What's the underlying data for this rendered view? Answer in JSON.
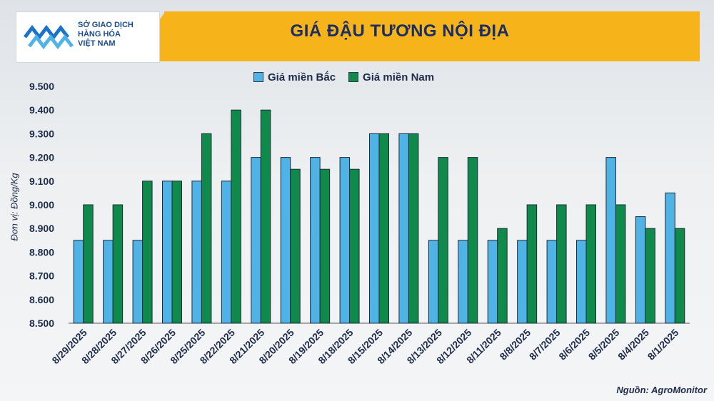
{
  "header": {
    "title": "GIÁ ĐẬU TƯƠNG NỘI ĐỊA",
    "logo_text_line1": "SỞ GIAO DỊCH",
    "logo_text_line2": "HÀNG HÓA",
    "logo_text_line3": "VIỆT NAM"
  },
  "source": "Nguồn: AgroMonitor",
  "colors": {
    "north": "#4fb3e6",
    "south": "#0f8a4a",
    "accent": "#f6b31a",
    "title": "#1a2e66"
  },
  "chart_data": {
    "type": "bar",
    "title": "GIÁ ĐẬU TƯƠNG NỘI ĐỊA",
    "ylabel": "Đơn vị: Đồng/Kg",
    "xlabel": "",
    "ylim": [
      8500,
      9500
    ],
    "yticks": [
      "8.500",
      "8.600",
      "8.700",
      "8.800",
      "8.900",
      "9.000",
      "9.100",
      "9.200",
      "9.300",
      "9.400",
      "9.500"
    ],
    "ytick_values": [
      8500,
      8600,
      8700,
      8800,
      8900,
      9000,
      9100,
      9200,
      9300,
      9400,
      9500
    ],
    "legend_position": "top",
    "categories": [
      "8/29/2025",
      "8/28/2025",
      "8/27/2025",
      "8/26/2025",
      "8/25/2025",
      "8/22/2025",
      "8/21/2025",
      "8/20/2025",
      "8/19/2025",
      "8/18/2025",
      "8/15/2025",
      "8/14/2025",
      "8/13/2025",
      "8/12/2025",
      "8/11/2025",
      "8/8/2025",
      "8/7/2025",
      "8/6/2025",
      "8/5/2025",
      "8/4/2025",
      "8/1/2025"
    ],
    "series": [
      {
        "name": "Giá miền Bắc",
        "color": "#4fb3e6",
        "values": [
          8850,
          8850,
          8850,
          9100,
          9100,
          9100,
          9200,
          9200,
          9200,
          9200,
          9300,
          9300,
          8850,
          8850,
          8850,
          8850,
          8850,
          8850,
          9200,
          8950,
          9050
        ]
      },
      {
        "name": "Giá miền Nam",
        "color": "#0f8a4a",
        "values": [
          9000,
          9000,
          9100,
          9100,
          9300,
          9400,
          9400,
          9150,
          9150,
          9150,
          9300,
          9300,
          9200,
          9200,
          8900,
          9000,
          9000,
          9000,
          9000,
          8900,
          8900
        ]
      }
    ]
  }
}
